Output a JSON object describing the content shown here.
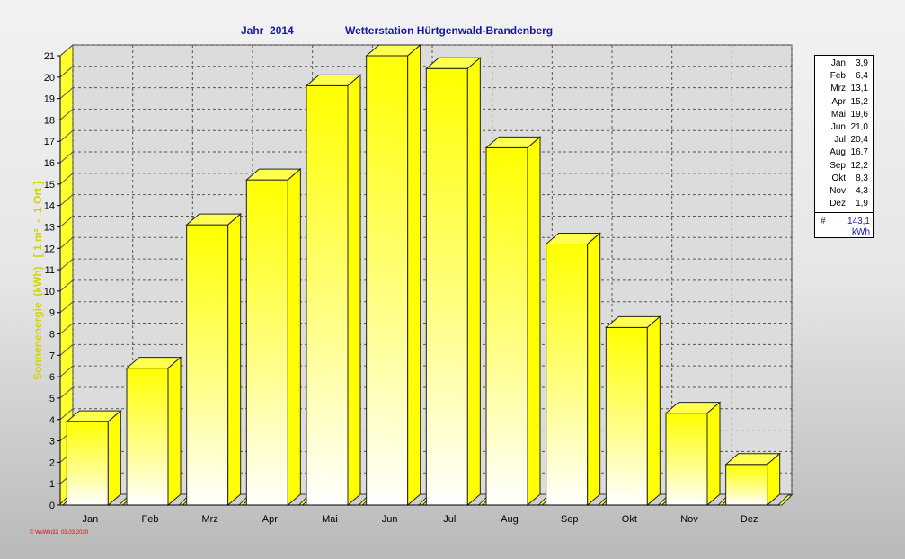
{
  "header": {
    "year_label": "Jahr  2014",
    "station_title": "Wetterstation Hürtgenwald-Brandenberg"
  },
  "axis": {
    "ylabel": "Sonnenenergie  (kWh)   [ 1 m²  -  1 Ort ]"
  },
  "legend": {
    "entries": [
      {
        "month": "Jan",
        "value": "3,9"
      },
      {
        "month": "Feb",
        "value": "6,4"
      },
      {
        "month": "Mrz",
        "value": "13,1"
      },
      {
        "month": "Apr",
        "value": "15,2"
      },
      {
        "month": "Mai",
        "value": "19,6"
      },
      {
        "month": "Jun",
        "value": "21,0"
      },
      {
        "month": "Jul",
        "value": "20,4"
      },
      {
        "month": "Aug",
        "value": "16,7"
      },
      {
        "month": "Sep",
        "value": "12,2"
      },
      {
        "month": "Okt",
        "value": "8,3"
      },
      {
        "month": "Nov",
        "value": "4,3"
      },
      {
        "month": "Dez",
        "value": "1,9"
      }
    ],
    "sum_symbol": "#",
    "sum_value": "143,1",
    "unit": "kWh"
  },
  "footer": {
    "text": "© WsWin32  03.03.2020"
  },
  "colors": {
    "bar_top": "#ffff00",
    "bar_bottom": "#ffffff",
    "title": "#1818a8",
    "ylabel": "#d4d400",
    "footer": "#e00000"
  },
  "chart_data": {
    "type": "bar",
    "categories": [
      "Jan",
      "Feb",
      "Mrz",
      "Apr",
      "Mai",
      "Jun",
      "Jul",
      "Aug",
      "Sep",
      "Okt",
      "Nov",
      "Dez"
    ],
    "values": [
      3.9,
      6.4,
      13.1,
      15.2,
      19.6,
      21.0,
      20.4,
      16.7,
      12.2,
      8.3,
      4.3,
      1.9
    ],
    "yticks": [
      0,
      1,
      2,
      3,
      4,
      5,
      6,
      7,
      8,
      9,
      10,
      11,
      12,
      13,
      14,
      15,
      16,
      17,
      18,
      19,
      20,
      21
    ],
    "ylim": [
      0,
      21
    ],
    "grid": true,
    "legend_position": "right",
    "style": "3d"
  }
}
